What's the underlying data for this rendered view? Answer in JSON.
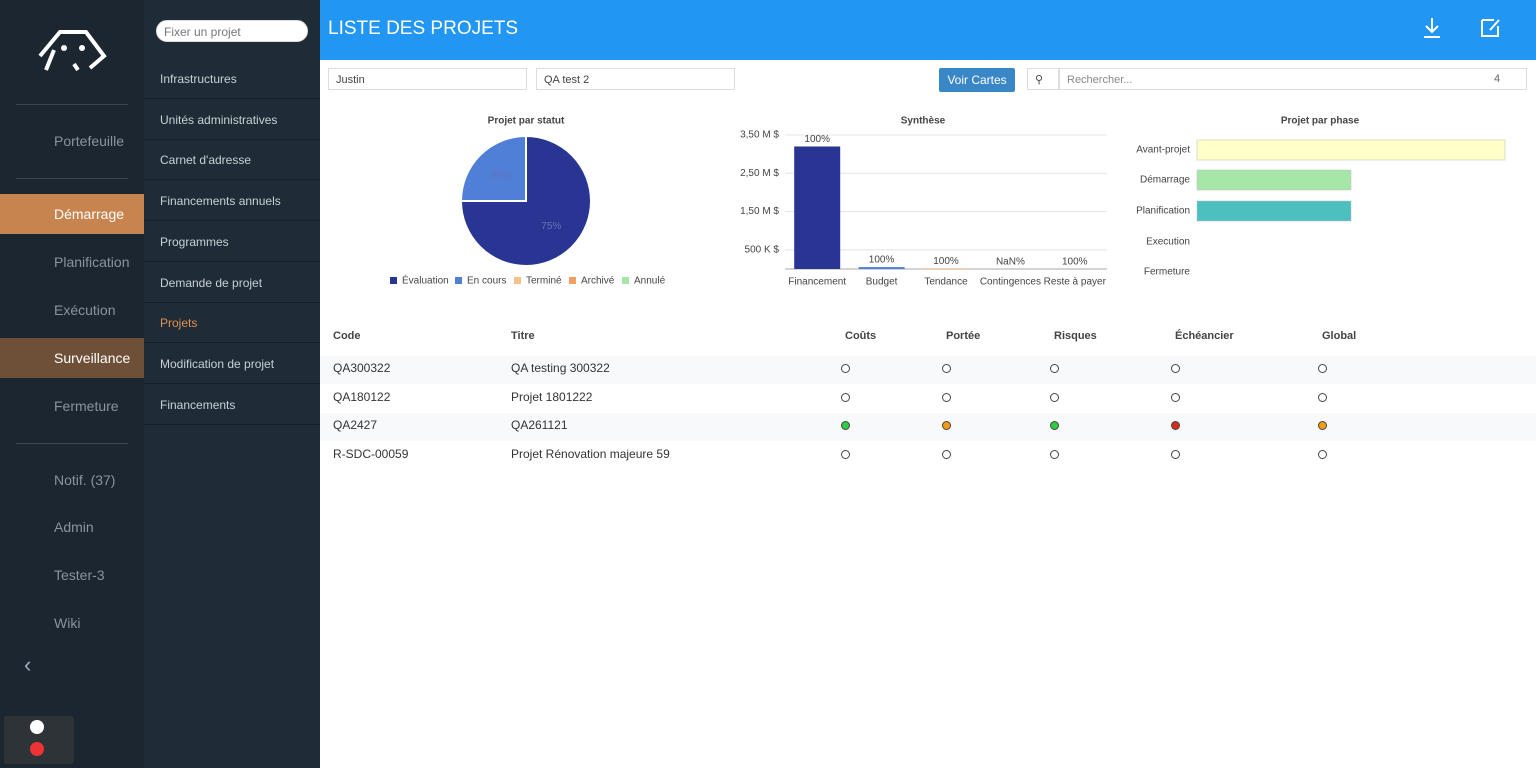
{
  "nav": {
    "items": [
      "Portefeuille",
      "Démarrage",
      "Planification",
      "Exécution",
      "Surveillance",
      "Fermeture",
      "Notif. (37)",
      "Admin",
      "Tester-3",
      "Wiki"
    ]
  },
  "submenu": {
    "search_placeholder": "Fixer un projet",
    "items": [
      "Infrastructures",
      "Unités administratives",
      "Carnet d'adresse",
      "Financements annuels",
      "Programmes",
      "Demande de projet",
      "Projets",
      "Modification de projet",
      "Financements"
    ]
  },
  "header": {
    "title": "LISTE DES PROJETS"
  },
  "filters": {
    "user": "Justin",
    "project": "QA test 2",
    "button": "Voir Cartes",
    "search_placeholder": "Rechercher...",
    "count": "4"
  },
  "chart_data": [
    {
      "type": "pie",
      "title": "Projet par statut",
      "categories": [
        "Évaluation",
        "En cours",
        "Terminé",
        "Archivé",
        "Annulé"
      ],
      "values": [
        75,
        25,
        0,
        0,
        0
      ],
      "value_labels": [
        "75%",
        "25%",
        null,
        null,
        null
      ],
      "colors": [
        "#283593",
        "#4f7fd6",
        "#f5c08a",
        "#f0a060",
        "#a6e6a6"
      ]
    },
    {
      "type": "bar",
      "title": "Synthèse",
      "categories": [
        "Financement",
        "Budget",
        "Tendance",
        "Contingences",
        "Reste à payer"
      ],
      "values": [
        3200000,
        50000,
        20000,
        0,
        0
      ],
      "annotations": [
        "100%",
        "100%",
        "100%",
        "NaN%",
        "100%"
      ],
      "colors": [
        "#283593",
        "#4f7fd6",
        "#f5c08a",
        "#f0a060",
        "#a6e6a6"
      ],
      "ylim": [
        0,
        3500000
      ],
      "yticks": [
        {
          "value": 500000,
          "label": "500 K $"
        },
        {
          "value": 1500000,
          "label": "1,50 M $"
        },
        {
          "value": 2500000,
          "label": "2,50 M $"
        },
        {
          "value": 3500000,
          "label": "3,50 M $"
        }
      ],
      "grid": true
    },
    {
      "type": "hbar",
      "title": "Projet par phase",
      "categories": [
        "Avant-projet",
        "Démarrage",
        "Planification",
        "Execution",
        "Fermeture"
      ],
      "values": [
        2,
        1,
        1,
        0,
        0
      ],
      "colors": [
        "#ffffc8",
        "#a6e6a6",
        "#4dbfbf",
        "#cccccc",
        "#cccccc"
      ],
      "xlim": [
        0,
        2
      ]
    }
  ],
  "table": {
    "headers": [
      "Code",
      "Titre",
      "Coûts",
      "Portée",
      "Risques",
      "Échéancier",
      "Global"
    ],
    "rows": [
      [
        "QA300322",
        "QA testing 300322",
        null,
        null,
        null,
        null,
        null
      ],
      [
        "QA180122",
        "Projet 1801222",
        null,
        null,
        null,
        null,
        null
      ],
      [
        "QA2427",
        "QA261121",
        "#2ecc40",
        "#f39c12",
        "#2ecc40",
        "#d62c1a",
        "#f39c12"
      ],
      [
        "R-SDC-00059",
        "Projet Rénovation majeure 59",
        null,
        null,
        null,
        null,
        null
      ]
    ]
  }
}
